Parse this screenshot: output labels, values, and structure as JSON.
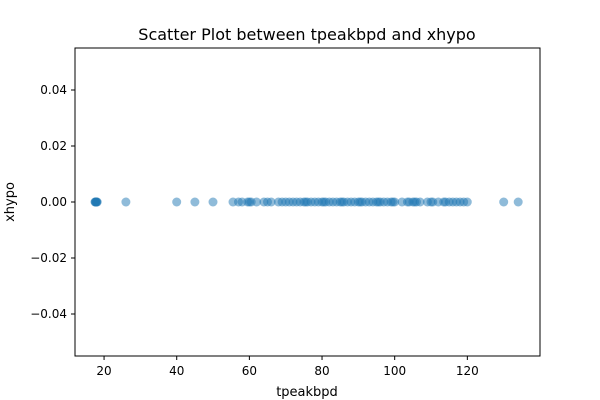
{
  "chart_data": {
    "type": "scatter",
    "title": "Scatter Plot between tpeakbpd and xhypo",
    "xlabel": "tpeakbpd",
    "ylabel": "xhypo",
    "xlim": [
      12,
      140
    ],
    "ylim": [
      -0.055,
      0.055
    ],
    "xticks": [
      20,
      40,
      60,
      80,
      100,
      120
    ],
    "xtick_labels": [
      "20",
      "40",
      "60",
      "80",
      "100",
      "120"
    ],
    "yticks": [
      0.04,
      0.02,
      0.0,
      -0.02,
      -0.04
    ],
    "ytick_labels": [
      "0.04",
      "0.02",
      "0.00",
      "−0.02",
      "−0.04"
    ],
    "grid": false,
    "marker_color": "#1f77b4",
    "marker_alpha": 0.5,
    "points": {
      "x": [
        17.5,
        17.6,
        17.7,
        17.8,
        17.9,
        18.0,
        18.1,
        26,
        40,
        45,
        50,
        55.5,
        57,
        58,
        59.5,
        60,
        60.5,
        62,
        64,
        65,
        66,
        68,
        69,
        70,
        71,
        72,
        73,
        74,
        75,
        75.5,
        76,
        77,
        78,
        79,
        80,
        80.5,
        81,
        82,
        83,
        84,
        85,
        85.5,
        86,
        87,
        88,
        89,
        90,
        90.5,
        91,
        92,
        93,
        94,
        95,
        95.5,
        96,
        97,
        98,
        99,
        99.5,
        100,
        102,
        103.5,
        104,
        105,
        105.5,
        106,
        107,
        109,
        110,
        110.5,
        112,
        113.5,
        114,
        115,
        116,
        117,
        118,
        119,
        120,
        130,
        134
      ],
      "y": [
        0,
        0,
        0,
        0,
        0,
        0,
        0,
        0,
        0,
        0,
        0,
        0,
        0,
        0,
        0,
        0,
        0,
        0,
        0,
        0,
        0,
        0,
        0,
        0,
        0,
        0,
        0,
        0,
        0,
        0,
        0,
        0,
        0,
        0,
        0,
        0,
        0,
        0,
        0,
        0,
        0,
        0,
        0,
        0,
        0,
        0,
        0,
        0,
        0,
        0,
        0,
        0,
        0,
        0,
        0,
        0,
        0,
        0,
        0,
        0,
        0,
        0,
        0,
        0,
        0,
        0,
        0,
        0,
        0,
        0,
        0,
        0,
        0,
        0,
        0,
        0,
        0,
        0,
        0,
        0,
        0
      ]
    }
  }
}
